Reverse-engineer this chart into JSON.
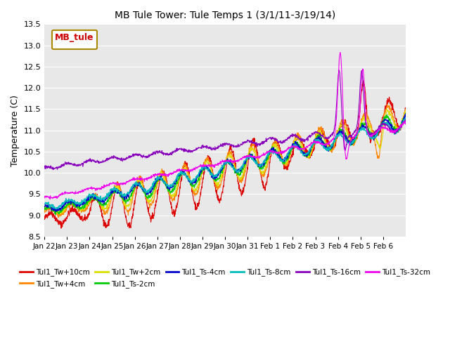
{
  "title": "MB Tule Tower: Tule Temps 1 (3/1/11-3/19/14)",
  "ylabel": "Temperature (C)",
  "ylim": [
    8.5,
    13.5
  ],
  "yticks": [
    8.5,
    9.0,
    9.5,
    10.0,
    10.5,
    11.0,
    11.5,
    12.0,
    12.5,
    13.0,
    13.5
  ],
  "legend_box_label": "MB_tule",
  "series": [
    {
      "label": "Tul1_Tw+10cm",
      "color": "#dd0000"
    },
    {
      "label": "Tul1_Tw+4cm",
      "color": "#ff8800"
    },
    {
      "label": "Tul1_Tw+2cm",
      "color": "#dddd00"
    },
    {
      "label": "Tul1_Ts-2cm",
      "color": "#00cc00"
    },
    {
      "label": "Tul1_Ts-4cm",
      "color": "#0000cc"
    },
    {
      "label": "Tul1_Ts-8cm",
      "color": "#00bbbb"
    },
    {
      "label": "Tul1_Ts-16cm",
      "color": "#8800bb"
    },
    {
      "label": "Tul1_Ts-32cm",
      "color": "#ee00ee"
    }
  ],
  "n_points": 1600,
  "x_start": 0,
  "x_end": 16,
  "xlim": [
    0,
    16
  ],
  "xtick_labels": [
    "Jan 22",
    "Jan 23",
    "Jan 24",
    "Jan 25",
    "Jan 26",
    "Jan 27",
    "Jan 28",
    "Jan 29",
    "Jan 30",
    "Jan 31",
    "Feb 1",
    "Feb 2",
    "Feb 3",
    "Feb 4",
    "Feb 5",
    "Feb 6"
  ],
  "xtick_positions": [
    0,
    1,
    2,
    3,
    4,
    5,
    6,
    7,
    8,
    9,
    10,
    11,
    12,
    13,
    14,
    15
  ],
  "background_color": "#e8e8e8"
}
